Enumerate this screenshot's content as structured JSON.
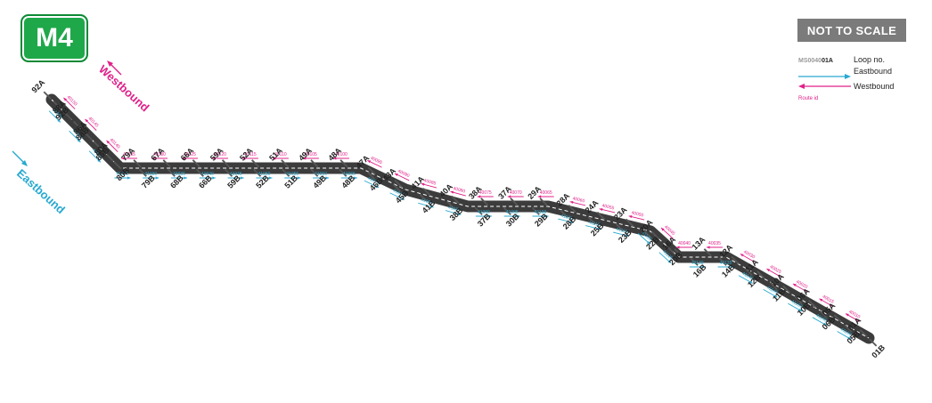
{
  "route": "M4",
  "scale_note": "NOT TO SCALE",
  "colors": {
    "eastbound": "#28a9d1",
    "westbound": "#e0218a",
    "road": "#3c3c3c",
    "badge": "#1fa84a"
  },
  "directions": {
    "westbound": "Westbound",
    "eastbound": "Eastbound"
  },
  "legend": {
    "code_prefix": "MS0040",
    "code_suffix": "01A",
    "loop_label": "Loop no.",
    "eastbound_label": "Eastbound",
    "westbound_label": "Westbound",
    "route_id_label": "Route id"
  },
  "stations_a": [
    "92A",
    "88A",
    "86A",
    "80A",
    "79A",
    "67A",
    "66A",
    "59A",
    "52A",
    "51A",
    "49A",
    "48A",
    "47A",
    "43A",
    "41A",
    "40A",
    "38A",
    "37A",
    "29A",
    "28A",
    "24A",
    "23A",
    "20A",
    "16A",
    "13A",
    "12A",
    "11A",
    "10A",
    "06A",
    "05A",
    "01A"
  ],
  "stations_b": [
    "92B",
    "88B",
    "86B",
    "80B",
    "79B",
    "68B",
    "66B",
    "59B",
    "52B",
    "51B",
    "49B",
    "48B",
    "46B",
    "45B",
    "41B",
    "38B",
    "37B",
    "30B",
    "29B",
    "28B",
    "25B",
    "23B",
    "22B",
    "20B",
    "16B",
    "14B",
    "12B",
    "11B",
    "10B",
    "06B",
    "05B",
    "01B"
  ],
  "route_ids_westbound": [
    "40150",
    "40145",
    "40140",
    "40135",
    "40130",
    "40125",
    "40120",
    "40115",
    "40110",
    "40105",
    "40100",
    "40095",
    "40090",
    "40085",
    "40080",
    "40075",
    "40070",
    "40065",
    "40060",
    "40055",
    "40050",
    "40045",
    "40040",
    "40035",
    "40030",
    "40025",
    "40020",
    "40015",
    "40010"
  ],
  "route_ids_eastbound": [
    "41005",
    "41010",
    "41015",
    "41025",
    "41030",
    "41035",
    "41040",
    "41045",
    "41050",
    "41055",
    "41060",
    "41065",
    "41070",
    "41075",
    "41080",
    "41085",
    "41090",
    "41095",
    "41100",
    "41105",
    "41110",
    "41115",
    "41120",
    "41125",
    "41130",
    "41135",
    "41140",
    "41145",
    "41150",
    "41155",
    "41160"
  ]
}
